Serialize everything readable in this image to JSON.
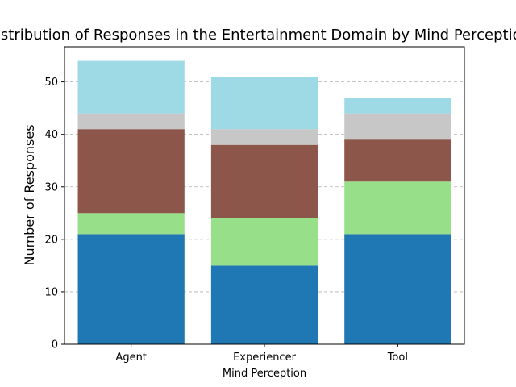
{
  "chart_data": {
    "type": "bar",
    "stacked": true,
    "title": "Distribution of Responses in the Entertainment Domain by Mind Perception",
    "xlabel": "Mind Perception",
    "ylabel": "Number of Responses",
    "categories": [
      "Agent",
      "Experiencer",
      "Tool"
    ],
    "ylim": [
      0,
      56.7
    ],
    "yticks": [
      0,
      10,
      20,
      30,
      40,
      50
    ],
    "grid": "y-dashed",
    "legend": "none",
    "series": [
      {
        "color": "#1f77b4",
        "values": [
          21,
          15,
          21
        ]
      },
      {
        "color": "#98df8a",
        "values": [
          4,
          9,
          10
        ]
      },
      {
        "color": "#8c564b",
        "values": [
          16,
          14,
          8
        ]
      },
      {
        "color": "#c7c7c7",
        "values": [
          3,
          3,
          5
        ]
      },
      {
        "color": "#9edae5",
        "values": [
          10,
          10,
          3
        ]
      }
    ]
  }
}
